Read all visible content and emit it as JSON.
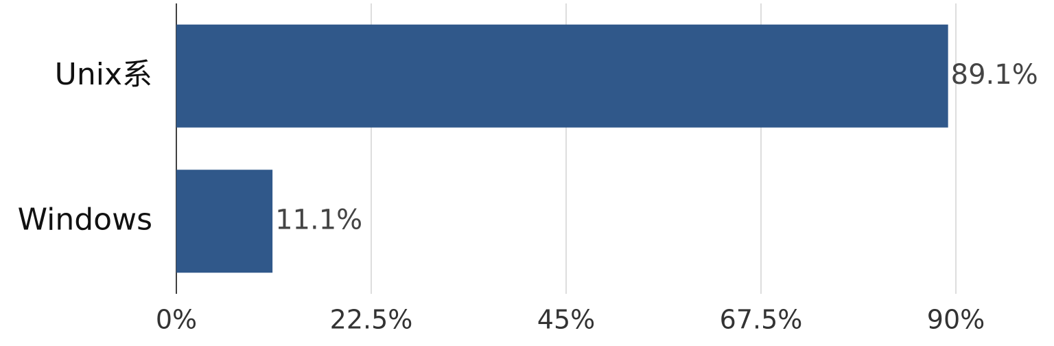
{
  "chart_data": {
    "type": "bar",
    "orientation": "horizontal",
    "categories": [
      "Unix系",
      "Windows"
    ],
    "values": [
      89.1,
      11.1
    ],
    "value_labels": [
      "89.1%",
      "11.1%"
    ],
    "color": "#30588a",
    "xlim": [
      0,
      90
    ],
    "xticks": [
      {
        "value": 0,
        "label": "0%"
      },
      {
        "value": 22.5,
        "label": "22.5%"
      },
      {
        "value": 45,
        "label": "45%"
      },
      {
        "value": 67.5,
        "label": "67.5%"
      },
      {
        "value": 90,
        "label": "90%"
      }
    ],
    "grid": true
  }
}
